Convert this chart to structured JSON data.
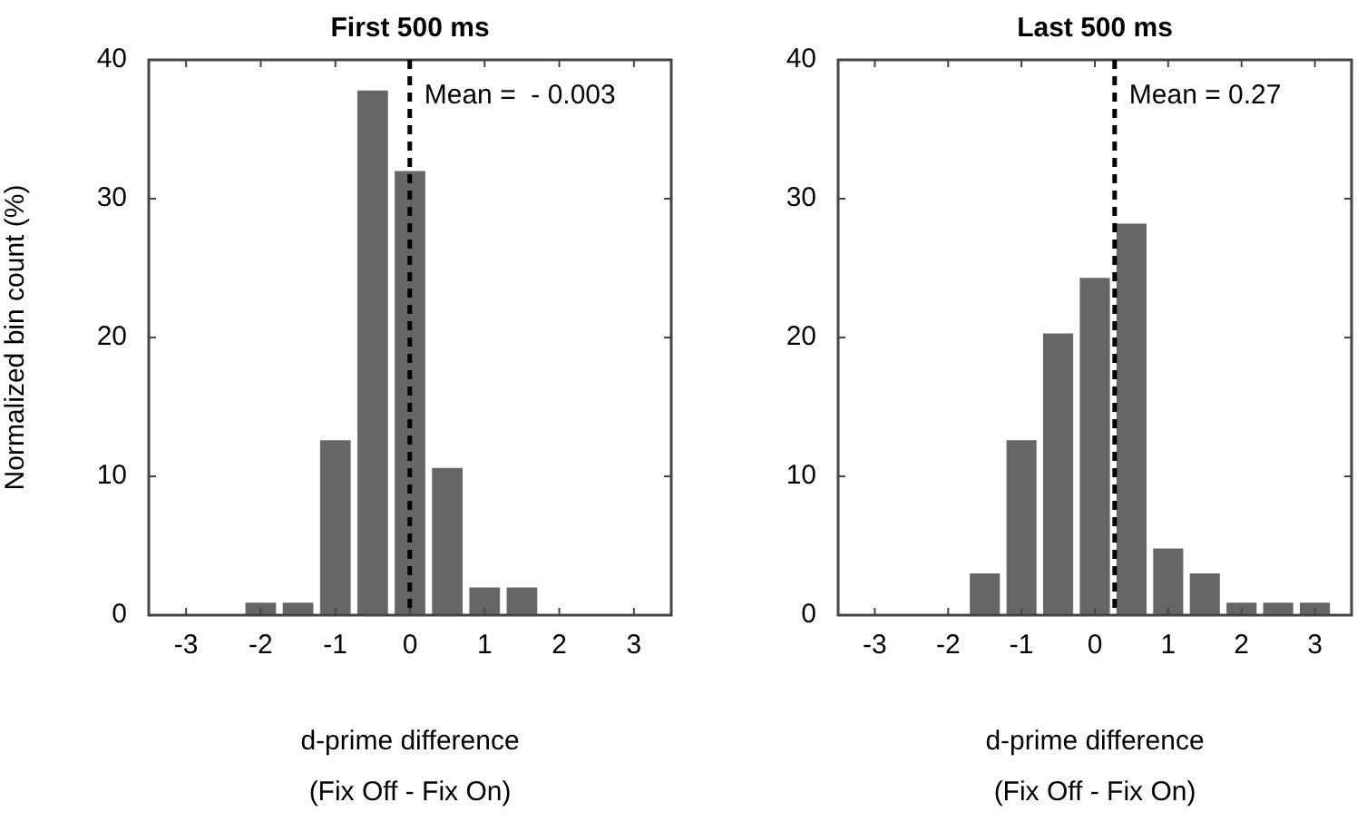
{
  "chart_data": [
    {
      "type": "histogram",
      "title": "First 500 ms",
      "xlabel": "d-prime difference",
      "ylabel": "Normalized bin count (%)",
      "annotations": [
        "(Fix Off - Fix On)"
      ],
      "bins": [
        -2.25,
        -1.75,
        -1.25,
        -0.75,
        -0.25,
        0.25,
        0.75,
        1.25,
        1.75
      ],
      "values": [
        0.9,
        0.9,
        12.6,
        37.8,
        32,
        10.6,
        2,
        2
      ],
      "color": "#666666",
      "xlim": [
        -3.5,
        3.5
      ],
      "xticks": [
        -3,
        -2,
        -1,
        0,
        1,
        2,
        3
      ],
      "ylim": [
        0,
        40
      ],
      "yticks": [
        0,
        10,
        20,
        30,
        40
      ],
      "ref_lines": [
        {
          "axis": "x",
          "value": -0.003,
          "label": "Mean =  - 0.003",
          "color": "#000000",
          "line_style": "dashed"
        }
      ]
    },
    {
      "type": "histogram",
      "title": "Last 500 ms",
      "xlabel": "d-prime difference",
      "annotations": [
        "(Fix Off - Fix On)"
      ],
      "bins": [
        -1.75,
        -1.25,
        -0.75,
        -0.25,
        0.25,
        0.75,
        1.25,
        1.75,
        2.25,
        2.75,
        3.25
      ],
      "values": [
        3,
        12.6,
        20.3,
        24.3,
        28.2,
        4.8,
        3,
        0.9,
        0.9,
        0.9
      ],
      "color": "#666666",
      "xlim": [
        -3.5,
        3.5
      ],
      "xticks": [
        -3,
        -2,
        -1,
        0,
        1,
        2,
        3
      ],
      "ylim": [
        0,
        40
      ],
      "yticks": [
        0,
        10,
        20,
        30,
        40
      ],
      "ref_lines": [
        {
          "axis": "x",
          "value": 0.27,
          "label": "Mean = 0.27",
          "color": "#000000",
          "line_style": "dashed"
        }
      ]
    }
  ]
}
